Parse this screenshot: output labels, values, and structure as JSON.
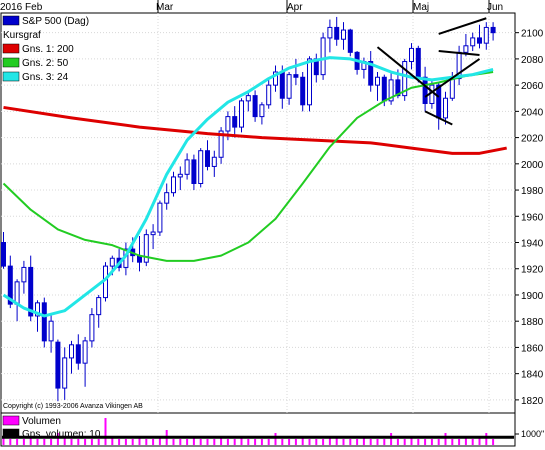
{
  "colors": {
    "up_candle": "#ffffff",
    "down_candle": "#0000cc",
    "wick": "#0000cc",
    "grid": "#d8d8d8",
    "volume": "#ff00ff",
    "volume_avg": "#000000",
    "trendlines": "#000000"
  },
  "chart_data": {
    "type": "candlestick",
    "title": "",
    "x_tick_labels": [
      "2016 Feb",
      "Mar",
      "Apr",
      "Maj",
      "Jun"
    ],
    "y_tick_labels": [
      "1820",
      "1840",
      "1860",
      "1880",
      "1900",
      "1920",
      "1940",
      "1960",
      "1980",
      "2000",
      "2020",
      "2040",
      "2060",
      "2080",
      "2100"
    ],
    "ylim": [
      1810,
      2115
    ],
    "grid": "dotted",
    "legend": {
      "placement": "top-left",
      "entries": [
        {
          "label": "S&P 500 (Dag)",
          "color": "#0000cc"
        },
        {
          "label": "Kursgraf",
          "color": ""
        },
        {
          "label": "Gns. 1: 200",
          "color": "#dd0000"
        },
        {
          "label": "Gns. 2: 50",
          "color": "#22cc22"
        },
        {
          "label": "Gns. 3: 24",
          "color": "#22e6e6"
        }
      ]
    },
    "copyright": "Copyright (c) 1993-2006 Avanza Vikingen AB",
    "candles": [
      [
        1940,
        1948,
        1920,
        1922
      ],
      [
        1922,
        1930,
        1890,
        1893
      ],
      [
        1893,
        1912,
        1880,
        1910
      ],
      [
        1910,
        1926,
        1901,
        1921
      ],
      [
        1921,
        1930,
        1880,
        1884
      ],
      [
        1884,
        1896,
        1872,
        1894
      ],
      [
        1894,
        1898,
        1860,
        1865
      ],
      [
        1865,
        1886,
        1856,
        1880
      ],
      [
        1864,
        1866,
        1819,
        1829
      ],
      [
        1829,
        1860,
        1820,
        1852
      ],
      [
        1852,
        1865,
        1840,
        1862
      ],
      [
        1862,
        1870,
        1843,
        1848
      ],
      [
        1848,
        1868,
        1830,
        1865
      ],
      [
        1865,
        1890,
        1860,
        1885
      ],
      [
        1885,
        1900,
        1875,
        1898
      ],
      [
        1898,
        1925,
        1895,
        1922
      ],
      [
        1922,
        1930,
        1915,
        1928
      ],
      [
        1928,
        1935,
        1918,
        1921
      ],
      [
        1921,
        1940,
        1915,
        1935
      ],
      [
        1935,
        1944,
        1925,
        1930
      ],
      [
        1930,
        1945,
        1918,
        1925
      ],
      [
        1925,
        1950,
        1922,
        1946
      ],
      [
        1946,
        1954,
        1935,
        1948
      ],
      [
        1948,
        1972,
        1945,
        1970
      ],
      [
        1970,
        1985,
        1965,
        1978
      ],
      [
        1978,
        1994,
        1975,
        1990
      ],
      [
        1990,
        1998,
        1980,
        1992
      ],
      [
        1992,
        2008,
        1988,
        2003
      ],
      [
        2003,
        2007,
        1980,
        1985
      ],
      [
        1985,
        2012,
        1982,
        2010
      ],
      [
        2010,
        2018,
        1995,
        1998
      ],
      [
        1998,
        2010,
        1990,
        2005
      ],
      [
        2005,
        2028,
        2000,
        2025
      ],
      [
        2025,
        2040,
        2018,
        2036
      ],
      [
        2036,
        2044,
        2020,
        2028
      ],
      [
        2028,
        2050,
        2024,
        2048
      ],
      [
        2048,
        2056,
        2040,
        2052
      ],
      [
        2052,
        2056,
        2032,
        2036
      ],
      [
        2036,
        2047,
        2030,
        2045
      ],
      [
        2045,
        2064,
        2042,
        2060
      ],
      [
        2060,
        2075,
        2055,
        2070
      ],
      [
        2070,
        2075,
        2042,
        2050
      ],
      [
        2050,
        2070,
        2045,
        2068
      ],
      [
        2068,
        2080,
        2060,
        2066
      ],
      [
        2066,
        2070,
        2040,
        2045
      ],
      [
        2045,
        2082,
        2040,
        2080
      ],
      [
        2080,
        2084,
        2062,
        2068
      ],
      [
        2068,
        2100,
        2064,
        2096
      ],
      [
        2096,
        2110,
        2085,
        2104
      ],
      [
        2104,
        2112,
        2090,
        2095
      ],
      [
        2095,
        2108,
        2087,
        2102
      ],
      [
        2102,
        2103,
        2082,
        2085
      ],
      [
        2085,
        2086,
        2068,
        2072
      ],
      [
        2072,
        2081,
        2065,
        2078
      ],
      [
        2078,
        2086,
        2055,
        2060
      ],
      [
        2060,
        2070,
        2048,
        2066
      ],
      [
        2066,
        2068,
        2044,
        2048
      ],
      [
        2048,
        2070,
        2045,
        2064
      ],
      [
        2064,
        2072,
        2050,
        2052
      ],
      [
        2052,
        2080,
        2048,
        2078
      ],
      [
        2078,
        2092,
        2072,
        2088
      ],
      [
        2088,
        2090,
        2062,
        2066
      ],
      [
        2066,
        2074,
        2040,
        2046
      ],
      [
        2046,
        2064,
        2042,
        2060
      ],
      [
        2060,
        2062,
        2026,
        2035
      ],
      [
        2035,
        2055,
        2030,
        2050
      ],
      [
        2050,
        2070,
        2048,
        2065
      ],
      [
        2065,
        2090,
        2060,
        2085
      ],
      [
        2085,
        2099,
        2082,
        2090
      ],
      [
        2090,
        2100,
        2086,
        2096
      ],
      [
        2096,
        2106,
        2088,
        2092
      ],
      [
        2092,
        2108,
        2087,
        2104
      ],
      [
        2104,
        2108,
        2094,
        2100
      ]
    ],
    "series": [
      {
        "name": "Gns. 1: 200",
        "color": "#dd0000",
        "width": 3,
        "points": [
          [
            0,
            2043
          ],
          [
            10,
            2035
          ],
          [
            20,
            2028
          ],
          [
            30,
            2023
          ],
          [
            38,
            2020
          ],
          [
            46,
            2018
          ],
          [
            54,
            2016
          ],
          [
            60,
            2012
          ],
          [
            66,
            2008
          ],
          [
            70,
            2008
          ],
          [
            74,
            2012
          ]
        ]
      },
      {
        "name": "Gns. 2: 50",
        "color": "#22cc22",
        "width": 2,
        "points": [
          [
            0,
            1985
          ],
          [
            4,
            1965
          ],
          [
            8,
            1950
          ],
          [
            12,
            1942
          ],
          [
            16,
            1938
          ],
          [
            20,
            1930
          ],
          [
            24,
            1926
          ],
          [
            28,
            1926
          ],
          [
            32,
            1930
          ],
          [
            36,
            1940
          ],
          [
            40,
            1958
          ],
          [
            44,
            1985
          ],
          [
            48,
            2013
          ],
          [
            52,
            2035
          ],
          [
            56,
            2048
          ],
          [
            60,
            2058
          ],
          [
            64,
            2062
          ],
          [
            68,
            2067
          ],
          [
            72,
            2070
          ]
        ]
      },
      {
        "name": "Gns. 3: 24",
        "color": "#22e6e6",
        "width": 3,
        "points": [
          [
            0,
            1900
          ],
          [
            3,
            1890
          ],
          [
            6,
            1884
          ],
          [
            9,
            1888
          ],
          [
            12,
            1900
          ],
          [
            15,
            1912
          ],
          [
            18,
            1930
          ],
          [
            21,
            1958
          ],
          [
            24,
            1992
          ],
          [
            27,
            2018
          ],
          [
            30,
            2034
          ],
          [
            33,
            2047
          ],
          [
            36,
            2055
          ],
          [
            39,
            2065
          ],
          [
            42,
            2073
          ],
          [
            45,
            2078
          ],
          [
            48,
            2081
          ],
          [
            51,
            2080
          ],
          [
            54,
            2076
          ],
          [
            57,
            2070
          ],
          [
            60,
            2066
          ],
          [
            63,
            2064
          ],
          [
            66,
            2066
          ],
          [
            69,
            2068
          ],
          [
            72,
            2072
          ]
        ]
      }
    ],
    "trendlines": [
      [
        [
          55,
          2089
        ],
        [
          64,
          2051
        ]
      ],
      [
        [
          62,
          2051
        ],
        [
          70,
          2080
        ]
      ],
      [
        [
          62,
          2040
        ],
        [
          66,
          2030
        ]
      ],
      [
        [
          64,
          2086
        ],
        [
          70,
          2083
        ]
      ],
      [
        [
          64,
          2099
        ],
        [
          71,
          2111
        ]
      ]
    ],
    "volume_pane": {
      "legend": [
        {
          "label": "Volumen",
          "color": "#ff00ff"
        },
        {
          "label": "Gns. volumen: 10",
          "color": "#000000"
        }
      ],
      "y_tick_label": "1000\"",
      "bars": [
        3,
        2,
        2,
        2,
        3,
        2,
        2,
        2,
        4,
        3,
        2,
        2,
        2,
        2,
        2,
        9,
        3,
        2,
        2,
        2,
        3,
        2,
        2,
        3,
        5,
        2,
        2,
        2,
        3,
        2,
        2,
        2,
        3,
        2,
        2,
        3,
        2,
        2,
        2,
        2,
        4,
        2,
        2,
        2,
        3,
        2,
        2,
        2,
        3,
        3,
        2,
        2,
        2,
        3,
        2,
        2,
        2,
        4,
        2,
        2,
        3,
        2,
        2,
        2,
        2,
        4,
        2,
        2,
        3,
        2,
        3,
        4,
        2
      ],
      "avg": 2.6,
      "ymax": 10
    }
  }
}
